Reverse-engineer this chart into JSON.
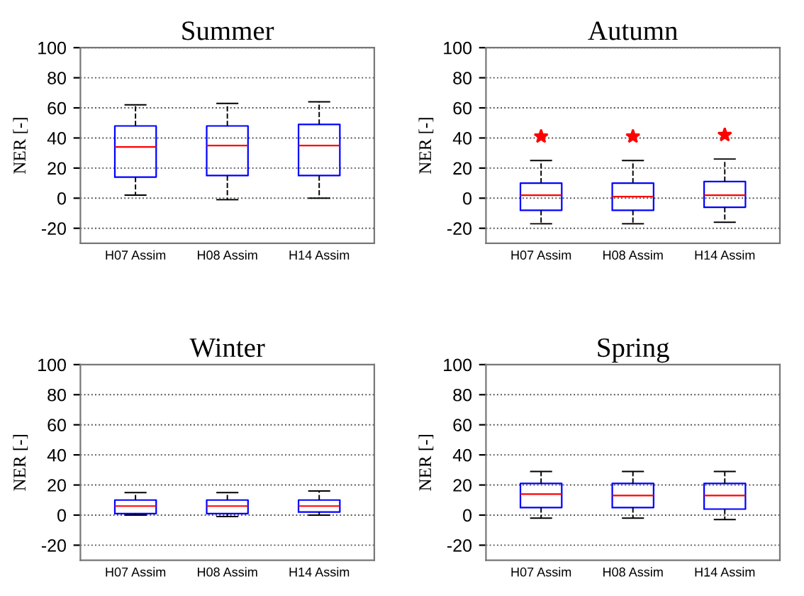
{
  "chart_data": [
    {
      "type": "box",
      "title": "Summer",
      "ylabel": "NER [-]",
      "categories": [
        "H07 Assim",
        "H08 Assim",
        "H14 Assim"
      ],
      "ylim": [
        -30,
        100
      ],
      "yticks": [
        -20,
        0,
        20,
        40,
        60,
        80,
        100
      ],
      "grid": "y",
      "boxes": [
        {
          "low": 2,
          "q1": 14,
          "median": 34,
          "q3": 48,
          "high": 62
        },
        {
          "low": -1,
          "q1": 15,
          "median": 35,
          "q3": 48,
          "high": 63
        },
        {
          "low": 0,
          "q1": 15,
          "median": 35,
          "q3": 49,
          "high": 64
        }
      ]
    },
    {
      "type": "box",
      "title": "Autumn",
      "ylabel": "NER [-]",
      "categories": [
        "H07 Assim",
        "H08 Assim",
        "H14 Assim"
      ],
      "ylim": [
        -30,
        100
      ],
      "yticks": [
        -20,
        0,
        20,
        40,
        60,
        80,
        100
      ],
      "grid": "y",
      "boxes": [
        {
          "low": -17,
          "q1": -8,
          "median": 2,
          "q3": 10,
          "high": 25,
          "outliers": [
            41
          ]
        },
        {
          "low": -17,
          "q1": -8,
          "median": 1,
          "q3": 10,
          "high": 25,
          "outliers": [
            41
          ]
        },
        {
          "low": -16,
          "q1": -6,
          "median": 2,
          "q3": 11,
          "high": 26,
          "outliers": [
            42
          ]
        }
      ]
    },
    {
      "type": "box",
      "title": "Winter",
      "ylabel": "NER [-]",
      "categories": [
        "H07 Assim",
        "H08 Assim",
        "H14 Assim"
      ],
      "ylim": [
        -30,
        100
      ],
      "yticks": [
        -20,
        0,
        20,
        40,
        60,
        80,
        100
      ],
      "grid": "y",
      "boxes": [
        {
          "low": 0,
          "q1": 1,
          "median": 6,
          "q3": 10,
          "high": 15
        },
        {
          "low": -1,
          "q1": 1,
          "median": 6,
          "q3": 10,
          "high": 15
        },
        {
          "low": 0,
          "q1": 2,
          "median": 6,
          "q3": 10,
          "high": 16
        }
      ]
    },
    {
      "type": "box",
      "title": "Spring",
      "ylabel": "NER [-]",
      "categories": [
        "H07 Assim",
        "H08 Assim",
        "H14 Assim"
      ],
      "ylim": [
        -30,
        100
      ],
      "yticks": [
        -20,
        0,
        20,
        40,
        60,
        80,
        100
      ],
      "grid": "y",
      "boxes": [
        {
          "low": -2,
          "q1": 5,
          "median": 14,
          "q3": 21,
          "high": 29
        },
        {
          "low": -2,
          "q1": 5,
          "median": 13,
          "q3": 21,
          "high": 29
        },
        {
          "low": -3,
          "q1": 4,
          "median": 13,
          "q3": 21,
          "high": 29
        }
      ]
    }
  ]
}
